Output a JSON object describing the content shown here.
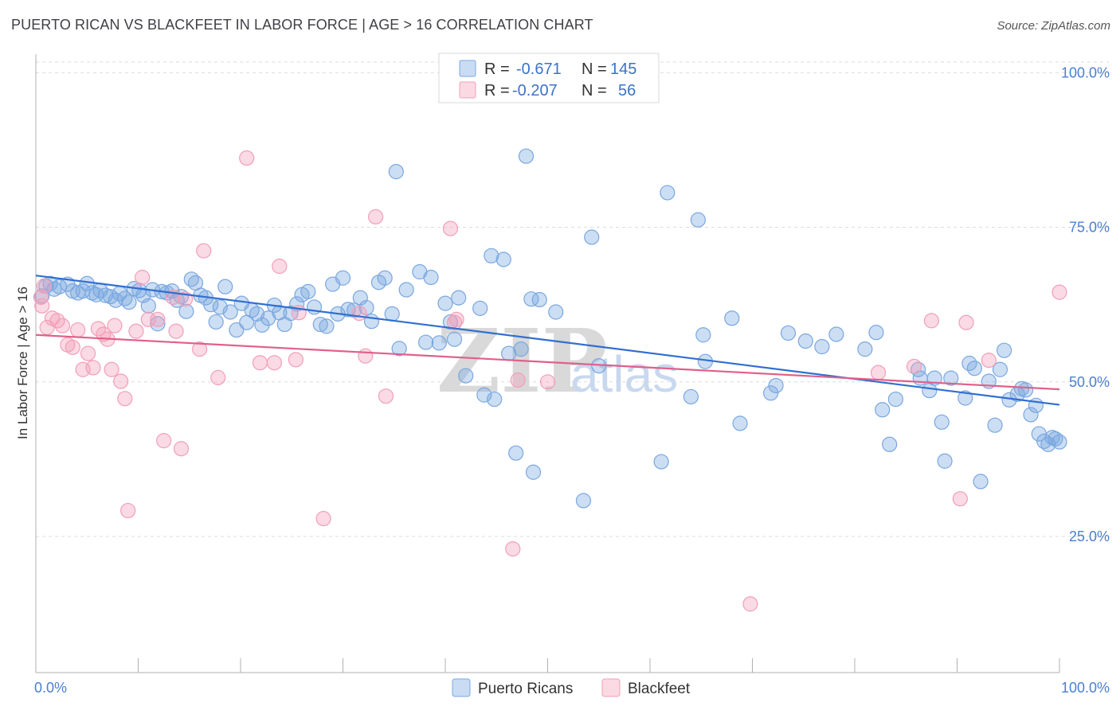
{
  "header": {
    "title": "PUERTO RICAN VS BLACKFEET IN LABOR FORCE | AGE > 16 CORRELATION CHART",
    "source": "Source: ZipAtlas.com"
  },
  "legend_top": {
    "rows": [
      {
        "r_label": "R =",
        "r_value": "-0.671",
        "n_label": "N =",
        "n_value": "145",
        "color": "#7aa7e0"
      },
      {
        "r_label": "R =",
        "r_value": "-0.207",
        "n_label": "N =",
        "n_value": "56",
        "color": "#f29fb8"
      }
    ]
  },
  "legend_bottom": {
    "items": [
      {
        "label": "Puerto Ricans",
        "color": "#7aa7e0"
      },
      {
        "label": "Blackfeet",
        "color": "#f29fb8"
      }
    ]
  },
  "watermark": {
    "zip": "ZIP",
    "atlas": "atlas"
  },
  "chart_data": {
    "type": "scatter",
    "title": "PUERTO RICAN VS BLACKFEET IN LABOR FORCE | AGE > 16 CORRELATION CHART",
    "ylabel": "In Labor Force | Age > 16",
    "xlabel": "",
    "xlim": [
      0,
      100
    ],
    "ylim": [
      3,
      103
    ],
    "x_tick_labels": [
      "0.0%",
      "100.0%"
    ],
    "y_ticks": [
      25,
      50,
      75,
      100
    ],
    "y_tick_labels": [
      "25.0%",
      "50.0%",
      "75.0%",
      "100.0%"
    ],
    "grid": true,
    "series": [
      {
        "name": "Puerto Ricans",
        "color": "#7aa7e0",
        "line_color": "#2f6fd0",
        "trend": [
          [
            0,
            67.2
          ],
          [
            100,
            46.3
          ]
        ],
        "points": [
          [
            0.6,
            63.9
          ],
          [
            1.0,
            65.5
          ],
          [
            1.4,
            65.9
          ],
          [
            1.8,
            65.0
          ],
          [
            2.3,
            65.4
          ],
          [
            3.1,
            65.8
          ],
          [
            3.6,
            64.7
          ],
          [
            4.1,
            64.4
          ],
          [
            4.6,
            64.7
          ],
          [
            5.0,
            65.9
          ],
          [
            5.5,
            64.4
          ],
          [
            5.9,
            64.1
          ],
          [
            6.3,
            64.8
          ],
          [
            6.8,
            64.0
          ],
          [
            7.3,
            63.8
          ],
          [
            7.8,
            63.2
          ],
          [
            8.2,
            64.3
          ],
          [
            8.7,
            63.5
          ],
          [
            9.1,
            62.9
          ],
          [
            9.6,
            65.1
          ],
          [
            10.1,
            64.8
          ],
          [
            10.5,
            64.0
          ],
          [
            11.0,
            62.3
          ],
          [
            11.4,
            64.9
          ],
          [
            11.9,
            59.4
          ],
          [
            12.3,
            64.6
          ],
          [
            12.8,
            64.4
          ],
          [
            13.3,
            64.7
          ],
          [
            13.8,
            63.2
          ],
          [
            14.2,
            63.8
          ],
          [
            14.7,
            61.4
          ],
          [
            15.2,
            66.6
          ],
          [
            15.6,
            66.0
          ],
          [
            16.1,
            64.0
          ],
          [
            16.6,
            63.6
          ],
          [
            17.1,
            62.5
          ],
          [
            17.6,
            59.7
          ],
          [
            18.0,
            62.1
          ],
          [
            18.5,
            65.4
          ],
          [
            19.0,
            61.3
          ],
          [
            19.6,
            58.4
          ],
          [
            20.1,
            62.7
          ],
          [
            20.6,
            59.6
          ],
          [
            21.1,
            61.6
          ],
          [
            21.6,
            61.0
          ],
          [
            22.1,
            59.2
          ],
          [
            22.7,
            60.3
          ],
          [
            23.3,
            62.4
          ],
          [
            23.8,
            61.2
          ],
          [
            24.3,
            59.3
          ],
          [
            24.9,
            61.1
          ],
          [
            25.5,
            62.6
          ],
          [
            26.0,
            64.1
          ],
          [
            26.6,
            64.6
          ],
          [
            27.2,
            62.1
          ],
          [
            27.8,
            59.3
          ],
          [
            28.4,
            59.0
          ],
          [
            29.0,
            65.8
          ],
          [
            29.5,
            61.0
          ],
          [
            30.0,
            66.8
          ],
          [
            30.5,
            61.7
          ],
          [
            31.1,
            61.6
          ],
          [
            31.7,
            63.6
          ],
          [
            32.3,
            62.0
          ],
          [
            32.8,
            59.8
          ],
          [
            33.5,
            66.1
          ],
          [
            34.1,
            66.8
          ],
          [
            34.8,
            61.0
          ],
          [
            35.2,
            84.0
          ],
          [
            35.5,
            55.4
          ],
          [
            36.2,
            64.9
          ],
          [
            37.5,
            67.8
          ],
          [
            38.1,
            56.4
          ],
          [
            38.6,
            66.9
          ],
          [
            39.4,
            56.3
          ],
          [
            40.0,
            62.7
          ],
          [
            40.5,
            59.7
          ],
          [
            40.9,
            56.9
          ],
          [
            41.3,
            63.6
          ],
          [
            42.0,
            51.0
          ],
          [
            43.4,
            61.9
          ],
          [
            43.8,
            47.9
          ],
          [
            44.5,
            70.4
          ],
          [
            44.8,
            47.2
          ],
          [
            45.7,
            69.8
          ],
          [
            46.2,
            54.6
          ],
          [
            46.9,
            38.5
          ],
          [
            47.4,
            55.3
          ],
          [
            47.9,
            86.5
          ],
          [
            48.4,
            63.4
          ],
          [
            48.6,
            35.4
          ],
          [
            49.2,
            63.3
          ],
          [
            50.8,
            61.3
          ],
          [
            53.5,
            30.8
          ],
          [
            54.3,
            73.4
          ],
          [
            55.0,
            52.6
          ],
          [
            61.1,
            37.1
          ],
          [
            61.7,
            80.6
          ],
          [
            64.0,
            47.6
          ],
          [
            64.7,
            76.2
          ],
          [
            65.2,
            57.6
          ],
          [
            65.4,
            53.3
          ],
          [
            68.0,
            60.3
          ],
          [
            68.8,
            43.3
          ],
          [
            71.8,
            48.2
          ],
          [
            72.3,
            49.4
          ],
          [
            73.5,
            57.9
          ],
          [
            75.2,
            56.6
          ],
          [
            76.8,
            55.7
          ],
          [
            78.2,
            57.7
          ],
          [
            81.0,
            55.3
          ],
          [
            82.1,
            58.0
          ],
          [
            82.7,
            45.5
          ],
          [
            83.4,
            39.9
          ],
          [
            84.0,
            47.2
          ],
          [
            86.2,
            52.0
          ],
          [
            86.4,
            50.6
          ],
          [
            87.3,
            48.6
          ],
          [
            87.8,
            50.6
          ],
          [
            88.5,
            43.5
          ],
          [
            88.8,
            37.2
          ],
          [
            89.4,
            50.6
          ],
          [
            90.8,
            47.4
          ],
          [
            91.2,
            53.0
          ],
          [
            91.7,
            52.2
          ],
          [
            92.3,
            33.9
          ],
          [
            93.1,
            50.1
          ],
          [
            93.7,
            43.0
          ],
          [
            94.2,
            52.0
          ],
          [
            94.6,
            55.1
          ],
          [
            95.1,
            47.1
          ],
          [
            95.9,
            48.0
          ],
          [
            96.3,
            48.9
          ],
          [
            96.7,
            48.7
          ],
          [
            97.2,
            44.7
          ],
          [
            97.7,
            46.2
          ],
          [
            98.0,
            41.6
          ],
          [
            98.5,
            40.4
          ],
          [
            98.9,
            39.9
          ],
          [
            99.3,
            41.0
          ],
          [
            99.6,
            40.8
          ],
          [
            100.0,
            40.3
          ]
        ]
      },
      {
        "name": "Blackfeet",
        "color": "#f29fb8",
        "line_color": "#e0608a",
        "trend": [
          [
            0,
            57.6
          ],
          [
            100,
            48.8
          ]
        ],
        "points": [
          [
            0.5,
            63.7
          ],
          [
            0.6,
            62.3
          ],
          [
            0.8,
            65.5
          ],
          [
            1.1,
            58.8
          ],
          [
            1.6,
            60.3
          ],
          [
            2.1,
            59.9
          ],
          [
            2.6,
            59.1
          ],
          [
            3.1,
            56.0
          ],
          [
            3.6,
            55.6
          ],
          [
            4.1,
            58.4
          ],
          [
            4.6,
            52.0
          ],
          [
            5.1,
            54.6
          ],
          [
            5.6,
            52.3
          ],
          [
            6.1,
            58.6
          ],
          [
            6.6,
            57.7
          ],
          [
            7.0,
            56.9
          ],
          [
            7.4,
            52.0
          ],
          [
            7.7,
            59.1
          ],
          [
            8.3,
            50.1
          ],
          [
            8.7,
            47.3
          ],
          [
            9.0,
            29.2
          ],
          [
            9.8,
            58.2
          ],
          [
            10.4,
            66.9
          ],
          [
            11.0,
            60.1
          ],
          [
            11.9,
            60.1
          ],
          [
            12.5,
            40.5
          ],
          [
            13.4,
            63.7
          ],
          [
            13.7,
            58.2
          ],
          [
            14.2,
            39.2
          ],
          [
            14.6,
            63.4
          ],
          [
            16.0,
            55.3
          ],
          [
            16.4,
            71.2
          ],
          [
            17.8,
            50.7
          ],
          [
            20.6,
            86.2
          ],
          [
            21.9,
            53.1
          ],
          [
            23.3,
            53.1
          ],
          [
            23.8,
            68.7
          ],
          [
            25.4,
            53.6
          ],
          [
            25.7,
            61.2
          ],
          [
            28.1,
            27.9
          ],
          [
            31.6,
            61.1
          ],
          [
            32.2,
            54.2
          ],
          [
            33.2,
            76.7
          ],
          [
            34.2,
            47.7
          ],
          [
            40.5,
            74.8
          ],
          [
            40.9,
            59.6
          ],
          [
            41.1,
            60.1
          ],
          [
            46.6,
            23.0
          ],
          [
            47.1,
            50.3
          ],
          [
            50.0,
            50.0
          ],
          [
            69.8,
            14.1
          ],
          [
            82.3,
            51.5
          ],
          [
            85.8,
            52.5
          ],
          [
            87.5,
            59.9
          ],
          [
            90.3,
            31.1
          ],
          [
            90.9,
            59.6
          ],
          [
            93.1,
            53.5
          ],
          [
            100.0,
            64.5
          ]
        ]
      }
    ]
  }
}
